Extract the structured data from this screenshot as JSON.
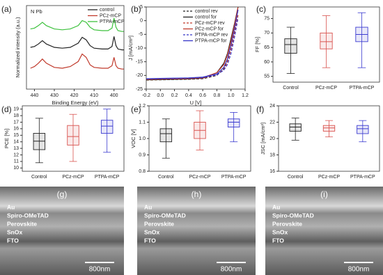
{
  "chart_data": [
    {
      "type": "line",
      "panel": "(a)",
      "annotation": "N Pb",
      "xlabel": "Binding Energy (eV)",
      "ylabel": "Normalized intensity (a.u.)",
      "xlim": [
        444,
        395
      ],
      "xticks": [
        440,
        430,
        420,
        410,
        400
      ],
      "ylim": [
        0,
        1
      ],
      "legend": "upper right",
      "x": [
        442,
        440,
        438,
        436,
        434,
        430,
        426,
        422,
        418,
        416,
        414,
        412,
        410,
        406,
        403,
        401,
        400,
        399,
        398,
        396,
        395
      ],
      "series": [
        {
          "name": "control",
          "color": "#222222",
          "style": "solid",
          "values": [
            0.5,
            0.51,
            0.54,
            0.58,
            0.54,
            0.5,
            0.49,
            0.5,
            0.55,
            0.62,
            0.59,
            0.52,
            0.49,
            0.48,
            0.48,
            0.51,
            0.63,
            0.52,
            0.48,
            0.47,
            0.47
          ]
        },
        {
          "name": "PCz-mCP",
          "color": "#c0392b",
          "style": "solid",
          "values": [
            0.25,
            0.27,
            0.31,
            0.36,
            0.31,
            0.26,
            0.25,
            0.27,
            0.33,
            0.42,
            0.38,
            0.29,
            0.26,
            0.25,
            0.25,
            0.28,
            0.38,
            0.28,
            0.25,
            0.24,
            0.24
          ]
        },
        {
          "name": "PTPA-mCP",
          "color": "#3cc13c",
          "style": "solid",
          "values": [
            0.72,
            0.73,
            0.76,
            0.8,
            0.76,
            0.72,
            0.71,
            0.72,
            0.76,
            0.82,
            0.8,
            0.74,
            0.71,
            0.7,
            0.7,
            0.73,
            0.85,
            0.74,
            0.7,
            0.69,
            0.69
          ]
        }
      ]
    },
    {
      "type": "line",
      "panel": "(b)",
      "xlabel": "U [V]",
      "ylabel": "J [mA/cm²]",
      "xlim": [
        -0.2,
        1.2
      ],
      "xticks": [
        -0.2,
        {
          "value": 0,
          "label": "0.0"
        },
        0.2,
        0.4,
        0.6,
        0.8,
        {
          "value": 1,
          "label": "1.0"
        },
        1.2
      ],
      "ylim": [
        -25,
        5
      ],
      "yticks": [
        -25,
        -20,
        -15,
        -10,
        -5,
        0,
        5
      ],
      "legend": "upper center",
      "x": [
        -0.2,
        0,
        0.2,
        0.4,
        0.6,
        0.8,
        0.9,
        0.95,
        1.0,
        1.05,
        1.1
      ],
      "series": [
        {
          "name": "control rev",
          "color": "#222222",
          "style": "dashed",
          "values": [
            -21.7,
            -21.6,
            -21.5,
            -21.4,
            -21.2,
            -20,
            -17.5,
            -14,
            -9,
            -3,
            4
          ]
        },
        {
          "name": "control for",
          "color": "#222222",
          "style": "solid",
          "values": [
            -21.6,
            -21.5,
            -21.4,
            -21.3,
            -21,
            -19,
            -15.5,
            -12,
            -6.5,
            -1,
            5
          ]
        },
        {
          "name": "PCz-mCP rev",
          "color": "#c0392b",
          "style": "dashed",
          "values": [
            -21.5,
            -21.4,
            -21.3,
            -21.2,
            -21,
            -19.8,
            -17.8,
            -15,
            -10.5,
            -4.5,
            2
          ]
        },
        {
          "name": "PCz-mCP for",
          "color": "#c0392b",
          "style": "solid",
          "values": [
            -21.4,
            -21.3,
            -21.2,
            -21.1,
            -20.8,
            -19,
            -16,
            -12.5,
            -7.5,
            -1.5,
            5
          ]
        },
        {
          "name": "PTPA-mCP rev",
          "color": "#3535c8",
          "style": "dashed",
          "values": [
            -21.3,
            -21.2,
            -21.1,
            -21,
            -20.8,
            -19.8,
            -18,
            -16,
            -12,
            -6,
            1
          ]
        },
        {
          "name": "PTPA-mCP for",
          "color": "#3535c8",
          "style": "solid",
          "values": [
            -21.2,
            -21.1,
            -21,
            -20.9,
            -20.6,
            -19.5,
            -17,
            -14,
            -9,
            -3,
            4
          ]
        }
      ]
    },
    {
      "type": "box",
      "panel": "(c)",
      "ylabel": "FF [%]",
      "categories": [
        "Control",
        "PCz-mCP",
        "PTPA-mCP"
      ],
      "colors": [
        "#222222",
        "#d9534f",
        "#3b3bd0"
      ],
      "ylim": [
        53,
        79
      ],
      "yticks": [
        55,
        60,
        65,
        70,
        75
      ],
      "whisker_low": [
        56,
        58,
        58
      ],
      "q1": [
        63,
        64.5,
        67
      ],
      "median": [
        66,
        67,
        69.5
      ],
      "q3": [
        68,
        70,
        72
      ],
      "whisker_high": [
        72,
        76,
        77
      ]
    },
    {
      "type": "box",
      "panel": "(d)",
      "ylabel": "PCE [%]",
      "categories": [
        "Control",
        "PCz-mCP",
        "PTPA-mCP"
      ],
      "colors": [
        "#222222",
        "#d9534f",
        "#3b3bd0"
      ],
      "ylim": [
        9.5,
        19.5
      ],
      "yticks": [
        10,
        11,
        12,
        13,
        14,
        15,
        16,
        17,
        18,
        19
      ],
      "whisker_low": [
        10.8,
        11,
        12.4
      ],
      "q1": [
        12.8,
        13.5,
        15.3
      ],
      "median": [
        14.1,
        14.8,
        16.4
      ],
      "q3": [
        15.3,
        16.5,
        17.3
      ],
      "whisker_high": [
        17.6,
        18.2,
        19
      ]
    },
    {
      "type": "box",
      "panel": "(e)",
      "ylabel": "VOC [V]",
      "categories": [
        "Control",
        "PCz-mCP",
        "PTPA-mCP"
      ],
      "colors": [
        "#222222",
        "#d9534f",
        "#3b3bd0"
      ],
      "ylim": [
        0.8,
        1.2
      ],
      "yticks": [
        0.8,
        0.9,
        {
          "value": 1,
          "label": "1.0"
        },
        1.1,
        1.2
      ],
      "whisker_low": [
        0.88,
        0.93,
        0.98
      ],
      "q1": [
        0.98,
        1.0,
        1.07
      ],
      "median": [
        1.03,
        1.05,
        1.1
      ],
      "q3": [
        1.06,
        1.1,
        1.12
      ],
      "whisker_high": [
        1.12,
        1.17,
        1.16
      ]
    },
    {
      "type": "box",
      "panel": "(f)",
      "ylabel": "JSC [mA/cm²]",
      "categories": [
        "Control",
        "PCz-mCP",
        "PTPA-mCP"
      ],
      "colors": [
        "#222222",
        "#d9534f",
        "#3b3bd0"
      ],
      "ylim": [
        16,
        24
      ],
      "yticks": [
        16,
        18,
        20,
        22,
        24
      ],
      "whisker_low": [
        19.8,
        20.2,
        19.6
      ],
      "q1": [
        20.9,
        20.9,
        20.6
      ],
      "median": [
        21.4,
        21.3,
        21.2
      ],
      "q3": [
        21.8,
        21.6,
        21.6
      ],
      "whisker_high": [
        22.5,
        22.2,
        22.2
      ]
    }
  ],
  "images": [
    {
      "panel": "(g)",
      "layers": [
        "Au",
        "Spiro-OMeTAD",
        "Perovskite",
        "SnOx",
        "FTO"
      ],
      "scale": "800nm"
    },
    {
      "panel": "(h)",
      "layers": [
        "Au",
        "Spiro-OMeTAD",
        "Perovskite",
        "SnOx",
        "FTO"
      ],
      "scale": "800nm"
    },
    {
      "panel": "(i)",
      "layers": [
        "Au",
        "Spiro-OMeTAD",
        "Perovskite",
        "SnOx",
        "FTO"
      ],
      "scale": "800nm"
    }
  ]
}
